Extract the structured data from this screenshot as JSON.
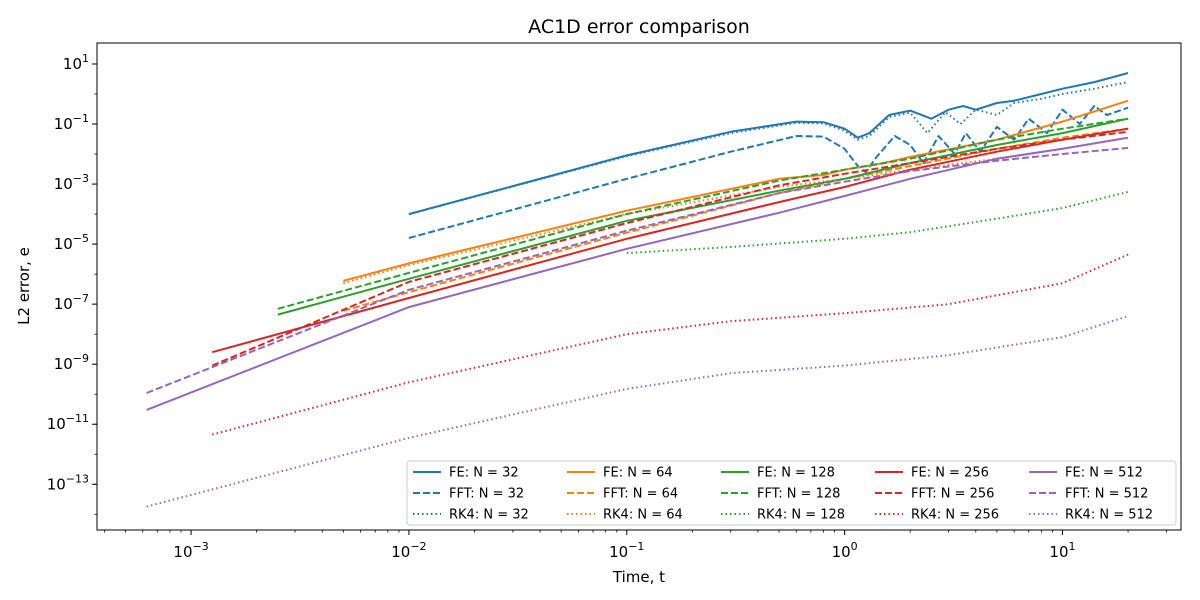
{
  "chart_data": {
    "type": "line",
    "title": "AC1D error comparison",
    "xlabel": "Time, t",
    "ylabel": "L2 error, e",
    "xscale": "log",
    "yscale": "log",
    "xlim": [
      0.00037,
      35
    ],
    "ylim": [
      3e-15,
      50
    ],
    "grid": false,
    "legend": {
      "placement": "lower-right",
      "columns": 5
    },
    "x_ticks": [
      {
        "value": 0.001,
        "base": "10",
        "exp": "−3"
      },
      {
        "value": 0.01,
        "base": "10",
        "exp": "−2"
      },
      {
        "value": 0.1,
        "base": "10",
        "exp": "−1"
      },
      {
        "value": 1,
        "base": "10",
        "exp": "0"
      },
      {
        "value": 10,
        "base": "10",
        "exp": "1"
      }
    ],
    "y_ticks": [
      {
        "value": 1e-13,
        "base": "10",
        "exp": "−13"
      },
      {
        "value": 1e-11,
        "base": "10",
        "exp": "−11"
      },
      {
        "value": 1e-09,
        "base": "10",
        "exp": "−9"
      },
      {
        "value": 1e-07,
        "base": "10",
        "exp": "−7"
      },
      {
        "value": 1e-05,
        "base": "10",
        "exp": "−5"
      },
      {
        "value": 0.001,
        "base": "10",
        "exp": "−3"
      },
      {
        "value": 0.1,
        "base": "10",
        "exp": "−1"
      },
      {
        "value": 10,
        "base": "10",
        "exp": "1"
      }
    ],
    "series": [
      {
        "name": "FE: N = 32",
        "color": "#1f77b4",
        "dash": "solid",
        "points": [
          [
            0.01,
            0.0001
          ],
          [
            0.1,
            0.009
          ],
          [
            0.3,
            0.055
          ],
          [
            0.6,
            0.12
          ],
          [
            0.8,
            0.115
          ],
          [
            1.0,
            0.07
          ],
          [
            1.15,
            0.035
          ],
          [
            1.3,
            0.05
          ],
          [
            1.6,
            0.2
          ],
          [
            2.0,
            0.28
          ],
          [
            2.5,
            0.15
          ],
          [
            3.0,
            0.3
          ],
          [
            3.5,
            0.4
          ],
          [
            4.0,
            0.3
          ],
          [
            5.0,
            0.5
          ],
          [
            6.0,
            0.6
          ],
          [
            8.0,
            1.0
          ],
          [
            10.0,
            1.5
          ],
          [
            14.0,
            2.5
          ],
          [
            20.0,
            5.0
          ]
        ]
      },
      {
        "name": "FFT: N = 32",
        "color": "#1f77b4",
        "dash": "dashed",
        "points": [
          [
            0.01,
            1.6e-05
          ],
          [
            0.1,
            0.0015
          ],
          [
            0.3,
            0.012
          ],
          [
            0.6,
            0.04
          ],
          [
            0.8,
            0.038
          ],
          [
            1.0,
            0.015
          ],
          [
            1.15,
            0.004
          ],
          [
            1.25,
            0.0025
          ],
          [
            1.4,
            0.008
          ],
          [
            1.7,
            0.04
          ],
          [
            2.0,
            0.02
          ],
          [
            2.3,
            0.005
          ],
          [
            2.7,
            0.04
          ],
          [
            3.2,
            0.01
          ],
          [
            3.6,
            0.05
          ],
          [
            4.2,
            0.012
          ],
          [
            5.0,
            0.08
          ],
          [
            6.0,
            0.03
          ],
          [
            7.0,
            0.15
          ],
          [
            8.5,
            0.05
          ],
          [
            10.0,
            0.3
          ],
          [
            12.0,
            0.1
          ],
          [
            14.0,
            0.4
          ],
          [
            16.0,
            0.2
          ],
          [
            20.0,
            0.35
          ]
        ]
      },
      {
        "name": "RK4: N = 32",
        "color": "#1f77b4",
        "dash": "dotted",
        "points": [
          [
            0.01,
            0.0001
          ],
          [
            0.1,
            0.0085
          ],
          [
            0.3,
            0.05
          ],
          [
            0.6,
            0.11
          ],
          [
            0.8,
            0.105
          ],
          [
            1.0,
            0.06
          ],
          [
            1.15,
            0.03
          ],
          [
            1.3,
            0.04
          ],
          [
            1.6,
            0.17
          ],
          [
            2.0,
            0.24
          ],
          [
            2.4,
            0.05
          ],
          [
            2.9,
            0.25
          ],
          [
            3.4,
            0.1
          ],
          [
            4.0,
            0.3
          ],
          [
            5.0,
            0.2
          ],
          [
            6.0,
            0.5
          ],
          [
            8.0,
            0.7
          ],
          [
            10.0,
            1.0
          ],
          [
            14.0,
            1.5
          ],
          [
            20.0,
            2.5
          ]
        ]
      },
      {
        "name": "FE: N = 64",
        "color": "#ff7f0e",
        "dash": "solid",
        "points": [
          [
            0.005,
            6e-07
          ],
          [
            0.01,
            2.3e-06
          ],
          [
            0.1,
            0.00013
          ],
          [
            0.5,
            0.0015
          ],
          [
            0.8,
            0.002
          ],
          [
            1.0,
            0.003
          ],
          [
            1.5,
            0.005
          ],
          [
            2.0,
            0.008
          ],
          [
            5.0,
            0.03
          ],
          [
            10.0,
            0.12
          ],
          [
            20.0,
            0.6
          ]
        ]
      },
      {
        "name": "FFT: N = 64",
        "color": "#ff7f0e",
        "dash": "dashed",
        "points": [
          [
            0.005,
            6e-08
          ],
          [
            0.01,
            2.5e-07
          ],
          [
            0.1,
            2.4e-05
          ],
          [
            0.5,
            0.0005
          ],
          [
            1.0,
            0.0015
          ],
          [
            2.0,
            0.004
          ],
          [
            5.0,
            0.015
          ],
          [
            10.0,
            0.035
          ],
          [
            20.0,
            0.07
          ]
        ]
      },
      {
        "name": "RK4: N = 64",
        "color": "#ff7f0e",
        "dash": "dotted",
        "points": [
          [
            0.005,
            5e-07
          ],
          [
            0.01,
            2e-06
          ],
          [
            0.1,
            0.0001
          ],
          [
            0.5,
            0.0008
          ],
          [
            1.0,
            0.0015
          ],
          [
            2.0,
            0.003
          ],
          [
            5.0,
            0.007
          ],
          [
            10.0,
            0.015
          ],
          [
            20.0,
            0.035
          ]
        ]
      },
      {
        "name": "FE: N = 128",
        "color": "#2ca02c",
        "dash": "solid",
        "points": [
          [
            0.0025,
            4.5e-08
          ],
          [
            0.01,
            7e-07
          ],
          [
            0.1,
            6e-05
          ],
          [
            0.5,
            0.0006
          ],
          [
            1.0,
            0.0015
          ],
          [
            2.0,
            0.005
          ],
          [
            5.0,
            0.02
          ],
          [
            10.0,
            0.05
          ],
          [
            20.0,
            0.15
          ]
        ]
      },
      {
        "name": "FFT: N = 128",
        "color": "#2ca02c",
        "dash": "dashed",
        "points": [
          [
            0.0025,
            7e-08
          ],
          [
            0.01,
            1.1e-06
          ],
          [
            0.1,
            0.0001
          ],
          [
            0.5,
            0.0013
          ],
          [
            1.0,
            0.003
          ],
          [
            2.0,
            0.007
          ],
          [
            5.0,
            0.03
          ],
          [
            10.0,
            0.07
          ],
          [
            20.0,
            0.15
          ]
        ]
      },
      {
        "name": "RK4: N = 128",
        "color": "#2ca02c",
        "dash": "dotted",
        "points": [
          [
            0.1,
            5e-06
          ],
          [
            0.3,
            8e-06
          ],
          [
            1.0,
            1.5e-05
          ],
          [
            2.0,
            2.5e-05
          ],
          [
            5.0,
            7e-05
          ],
          [
            10.0,
            0.00016
          ],
          [
            20.0,
            0.00055
          ]
        ]
      },
      {
        "name": "FE: N = 256",
        "color": "#d62728",
        "dash": "solid",
        "points": [
          [
            0.00125,
            2.5e-09
          ],
          [
            0.01,
            1.6e-07
          ],
          [
            0.1,
            1.5e-05
          ],
          [
            0.5,
            0.00025
          ],
          [
            1.0,
            0.0008
          ],
          [
            2.0,
            0.003
          ],
          [
            5.0,
            0.012
          ],
          [
            10.0,
            0.03
          ],
          [
            20.0,
            0.07
          ]
        ]
      },
      {
        "name": "FFT: N = 256",
        "color": "#d62728",
        "dash": "dashed",
        "points": [
          [
            0.00125,
            9e-10
          ],
          [
            0.01,
            5.5e-07
          ],
          [
            0.1,
            5e-05
          ],
          [
            0.5,
            0.0009
          ],
          [
            1.0,
            0.0022
          ],
          [
            2.0,
            0.005
          ],
          [
            5.0,
            0.015
          ],
          [
            10.0,
            0.03
          ],
          [
            20.0,
            0.055
          ]
        ]
      },
      {
        "name": "RK4: N = 256",
        "color": "#d62728",
        "dash": "dotted",
        "points": [
          [
            0.00125,
            4.5e-12
          ],
          [
            0.01,
            2.5e-10
          ],
          [
            0.1,
            1e-08
          ],
          [
            0.3,
            2.7e-08
          ],
          [
            1.0,
            5e-08
          ],
          [
            3.0,
            1e-07
          ],
          [
            10.0,
            5e-07
          ],
          [
            20.0,
            4.5e-06
          ]
        ]
      },
      {
        "name": "FE: N = 512",
        "color": "#9467bd",
        "dash": "solid",
        "points": [
          [
            0.000625,
            3e-11
          ],
          [
            0.01,
            8e-08
          ],
          [
            0.1,
            7e-06
          ],
          [
            0.5,
            0.00011
          ],
          [
            1.0,
            0.0004
          ],
          [
            2.0,
            0.0015
          ],
          [
            5.0,
            0.007
          ],
          [
            10.0,
            0.015
          ],
          [
            20.0,
            0.035
          ]
        ]
      },
      {
        "name": "FFT: N = 512",
        "color": "#9467bd",
        "dash": "dashed",
        "points": [
          [
            0.000625,
            1.1e-10
          ],
          [
            0.01,
            3e-07
          ],
          [
            0.1,
            2.8e-05
          ],
          [
            0.5,
            0.0005
          ],
          [
            1.0,
            0.0012
          ],
          [
            2.0,
            0.0027
          ],
          [
            5.0,
            0.006
          ],
          [
            10.0,
            0.01
          ],
          [
            20.0,
            0.016
          ]
        ]
      },
      {
        "name": "RK4: N = 512",
        "color": "#9467bd",
        "dash": "dotted",
        "points": [
          [
            0.000625,
            1.8e-14
          ],
          [
            0.01,
            3.5e-12
          ],
          [
            0.1,
            1.5e-10
          ],
          [
            0.3,
            5e-10
          ],
          [
            1.0,
            9e-10
          ],
          [
            3.0,
            2e-09
          ],
          [
            10.0,
            8e-09
          ],
          [
            20.0,
            4e-08
          ]
        ]
      }
    ]
  }
}
